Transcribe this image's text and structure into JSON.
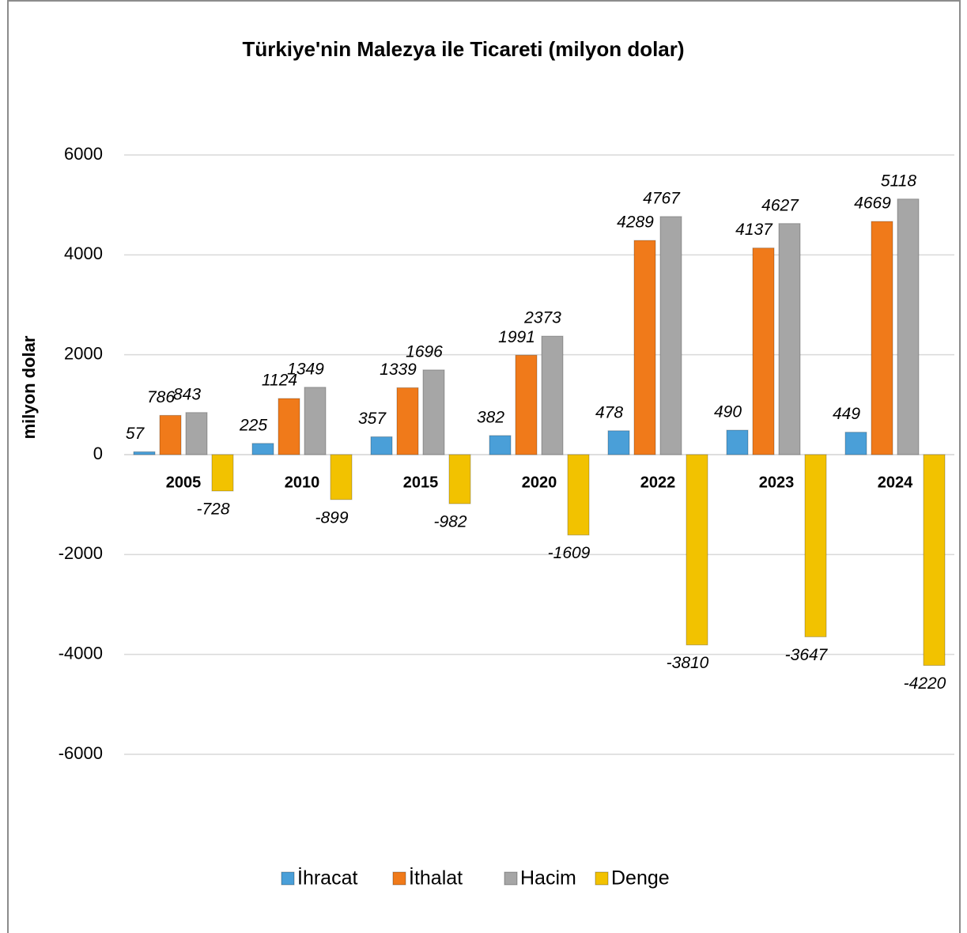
{
  "chart_data": {
    "type": "bar",
    "title": "Türkiye'nin Malezya ile Ticareti (milyon dolar)",
    "y_label": "milyon dolar",
    "categories": [
      "2005",
      "2010",
      "2015",
      "2020",
      "2022",
      "2023",
      "2024"
    ],
    "series": [
      {
        "name": "İhracat",
        "color": "#4a9fd8",
        "values": [
          57,
          225,
          357,
          382,
          478,
          490,
          449
        ]
      },
      {
        "name": "İthalat",
        "color": "#f07a1a",
        "values": [
          786,
          1124,
          1339,
          1991,
          4289,
          4137,
          4669
        ]
      },
      {
        "name": "Hacim",
        "color": "#a6a6a6",
        "values": [
          843,
          1349,
          1696,
          2373,
          4767,
          4627,
          5118
        ]
      },
      {
        "name": "Denge",
        "color": "#f2c200",
        "values": [
          -728,
          -899,
          -982,
          -1609,
          -3810,
          -3647,
          -4220
        ]
      }
    ],
    "ylim": [
      -6000,
      6000
    ],
    "yticks": [
      -6000,
      -4000,
      -2000,
      0,
      2000,
      4000,
      6000
    ],
    "grid": true,
    "legend": "bottom"
  }
}
